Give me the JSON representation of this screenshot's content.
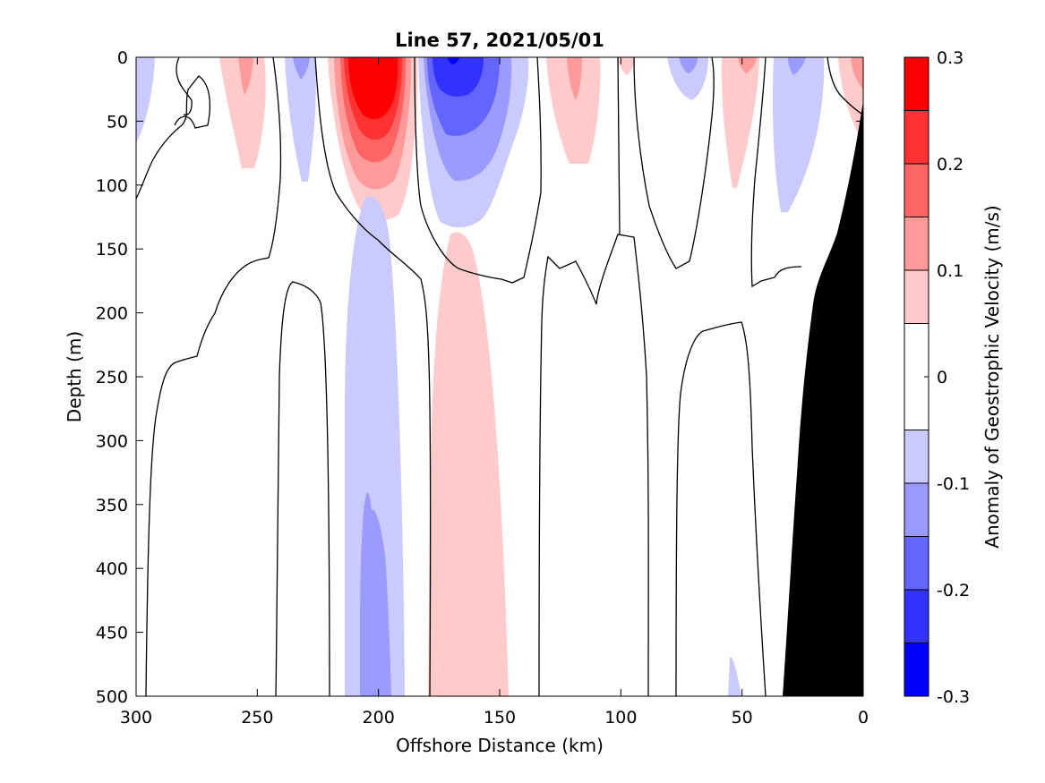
{
  "chart_data": {
    "type": "contour",
    "title": "Line 57, 2021/05/01",
    "xlabel": "Offshore Distance (km)",
    "ylabel": "Depth (m)",
    "colorbar_label": "Anomaly of Geostrophic Velocity (m/s)",
    "xlim": [
      300,
      0
    ],
    "ylim": [
      0,
      500
    ],
    "x_reversed": true,
    "y_reversed": true,
    "xticks": [
      300,
      250,
      200,
      150,
      100,
      50,
      0
    ],
    "yticks": [
      0,
      50,
      100,
      150,
      200,
      250,
      300,
      350,
      400,
      450,
      500
    ],
    "colorbar": {
      "range": [
        -0.3,
        0.3
      ],
      "ticks": [
        0.3,
        0.2,
        0.1,
        0,
        -0.1,
        -0.2,
        -0.3
      ],
      "tick_labels": [
        "0.3",
        "0.2",
        "0.1",
        "0",
        "-0.1",
        "-0.2",
        "-0.3"
      ],
      "levels": [
        -0.3,
        -0.25,
        -0.2,
        -0.15,
        -0.1,
        -0.05,
        0.05,
        0.1,
        0.15,
        0.2,
        0.25,
        0.3
      ],
      "colors": [
        "#0000ff",
        "#3232ff",
        "#6464ff",
        "#9a9aff",
        "#cacaff",
        "#ffffff",
        "#ffcaca",
        "#ff9a9a",
        "#ff6464",
        "#ff3232",
        "#ff0000"
      ]
    },
    "features": [
      {
        "name": "positive core near 200 km",
        "sign": "positive",
        "peak": 0.3,
        "center_km": 200,
        "depth_m": [
          0,
          130
        ]
      },
      {
        "name": "negative core near 170 km",
        "sign": "negative",
        "peak": -0.25,
        "center_km": 170,
        "depth_m": [
          0,
          125
        ]
      },
      {
        "name": "negative deep core near 202 km",
        "sign": "negative",
        "peak": -0.15,
        "center_km": 202,
        "depth_m": [
          220,
          500
        ]
      },
      {
        "name": "positive deep core near 165 km",
        "sign": "positive",
        "peak": 0.1,
        "center_km": 165,
        "depth_m": [
          263,
          500
        ]
      },
      {
        "name": "shelf bathymetry",
        "sign": "land",
        "km": [
          0,
          33
        ],
        "depth_m": [
          35,
          500
        ]
      }
    ]
  }
}
